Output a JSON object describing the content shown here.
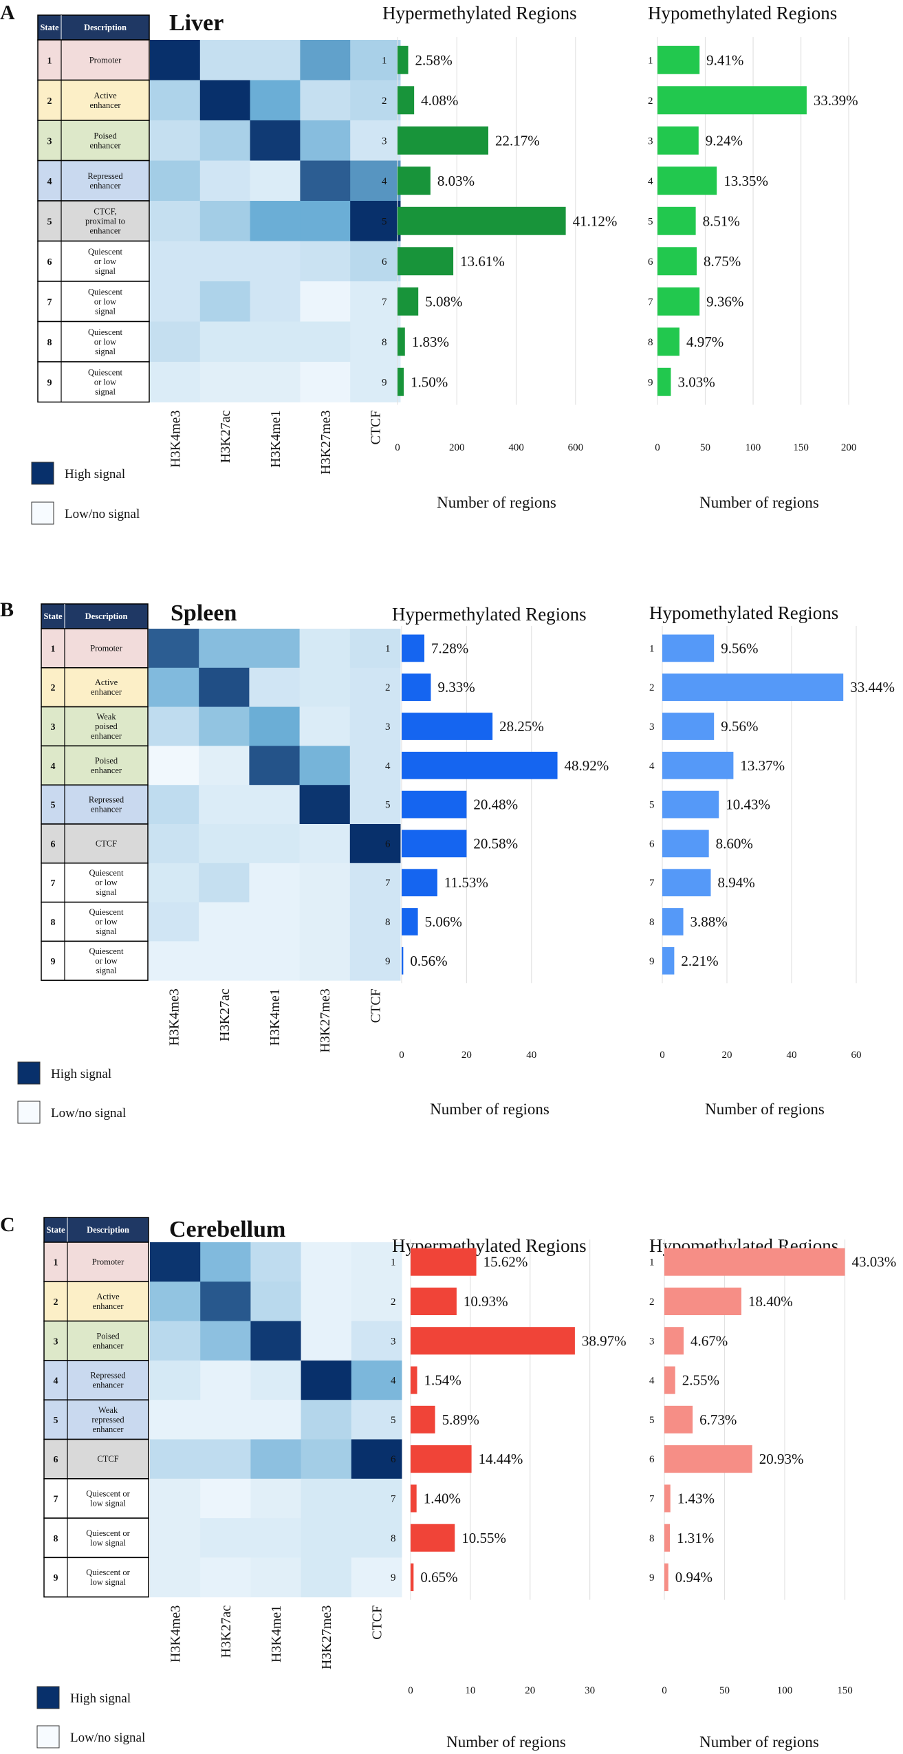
{
  "domain": "Chart",
  "legend": {
    "high": "High signal",
    "low": "Low/no signal"
  },
  "table_headers": {
    "state": "State",
    "description": "Description"
  },
  "marks": [
    "H3K4me3",
    "H3K27ac",
    "H3K4me1",
    "H3K27me3",
    "CTCF"
  ],
  "colors": {
    "header_bg": "#1f3864",
    "heat_high": "#08306b",
    "heat_low": "#f7fbff",
    "state_fill": {
      "promoter": "#f2dcdb",
      "active": "#fcefc7",
      "poised": "#dde8c9",
      "repressed": "#c9d9ef",
      "ctcf": "#d9d9d9",
      "quiescent": "#ffffff"
    }
  },
  "chart_data": [
    {
      "panel": "A",
      "tissue": "Liver",
      "states": [
        {
          "num": "1",
          "lines": [
            "Promoter"
          ],
          "fill": "promoter"
        },
        {
          "num": "2",
          "lines": [
            "Active",
            "enhancer"
          ],
          "fill": "active"
        },
        {
          "num": "3",
          "lines": [
            "Poised",
            "enhancer"
          ],
          "fill": "poised"
        },
        {
          "num": "4",
          "lines": [
            "Repressed",
            "enhancer"
          ],
          "fill": "repressed"
        },
        {
          "num": "5",
          "lines": [
            "CTCF,",
            "proximal to",
            "enhancer"
          ],
          "fill": "ctcf"
        },
        {
          "num": "6",
          "lines": [
            "Quiescent",
            "or low",
            "signal"
          ],
          "fill": "quiescent"
        },
        {
          "num": "7",
          "lines": [
            "Quiescent",
            "or low",
            "signal"
          ],
          "fill": "quiescent"
        },
        {
          "num": "8",
          "lines": [
            "Quiescent",
            "or low",
            "signal"
          ],
          "fill": "quiescent"
        },
        {
          "num": "9",
          "lines": [
            "Quiescent",
            "or low",
            "signal"
          ],
          "fill": "quiescent"
        }
      ],
      "heatmap": [
        [
          1.0,
          0.18,
          0.18,
          0.55,
          0.28
        ],
        [
          0.26,
          1.0,
          0.5,
          0.18,
          0.22
        ],
        [
          0.18,
          0.28,
          0.96,
          0.4,
          0.14
        ],
        [
          0.3,
          0.14,
          0.1,
          0.82,
          0.6
        ],
        [
          0.18,
          0.3,
          0.5,
          0.5,
          1.0
        ],
        [
          0.14,
          0.14,
          0.14,
          0.16,
          0.22
        ],
        [
          0.14,
          0.26,
          0.14,
          0.04,
          0.1
        ],
        [
          0.18,
          0.12,
          0.12,
          0.12,
          0.1
        ],
        [
          0.1,
          0.08,
          0.08,
          0.04,
          0.1
        ]
      ],
      "hyper": {
        "title": "Hypermethylated Regions",
        "xlabel": "Number of regions",
        "xlim": [
          0,
          700
        ],
        "xticks": [
          0,
          200,
          400,
          600
        ],
        "color": "#18943a",
        "categories": [
          "1",
          "2",
          "3",
          "4",
          "5",
          "6",
          "7",
          "8",
          "9"
        ],
        "values": [
          36,
          56,
          306,
          111,
          567,
          188,
          70,
          25,
          21
        ],
        "labels": [
          "2.58%",
          "4.08%",
          "22.17%",
          "8.03%",
          "41.12%",
          "13.61%",
          "5.08%",
          "1.83%",
          "1.50%"
        ]
      },
      "hypo": {
        "title": "Hypomethylated Regions",
        "xlabel": "Number of regions",
        "xlim": [
          0,
          210
        ],
        "xticks": [
          0,
          50,
          100,
          150,
          200
        ],
        "color": "#22c84e",
        "categories": [
          "1",
          "2",
          "3",
          "4",
          "5",
          "6",
          "7",
          "8",
          "9"
        ],
        "values": [
          44,
          156,
          43,
          62,
          40,
          41,
          44,
          23,
          14
        ],
        "labels": [
          "9.41%",
          "33.39%",
          "9.24%",
          "13.35%",
          "8.51%",
          "8.75%",
          "9.36%",
          "4.97%",
          "3.03%"
        ]
      }
    },
    {
      "panel": "B",
      "tissue": "Spleen",
      "states": [
        {
          "num": "1",
          "lines": [
            "Promoter"
          ],
          "fill": "promoter"
        },
        {
          "num": "2",
          "lines": [
            "Active",
            "enhancer"
          ],
          "fill": "active"
        },
        {
          "num": "3",
          "lines": [
            "Weak",
            "poised",
            "enhancer"
          ],
          "fill": "poised"
        },
        {
          "num": "4",
          "lines": [
            "Poised",
            "enhancer"
          ],
          "fill": "poised"
        },
        {
          "num": "5",
          "lines": [
            "Repressed",
            "enhancer"
          ],
          "fill": "repressed"
        },
        {
          "num": "6",
          "lines": [
            "CTCF"
          ],
          "fill": "ctcf"
        },
        {
          "num": "7",
          "lines": [
            "Quiescent",
            "or low",
            "signal"
          ],
          "fill": "quiescent"
        },
        {
          "num": "8",
          "lines": [
            "Quiescent",
            "or low",
            "signal"
          ],
          "fill": "quiescent"
        },
        {
          "num": "9",
          "lines": [
            "Quiescent",
            "or low",
            "signal"
          ],
          "fill": "quiescent"
        }
      ],
      "heatmap": [
        [
          0.82,
          0.4,
          0.4,
          0.12,
          0.16
        ],
        [
          0.42,
          0.88,
          0.14,
          0.12,
          0.14
        ],
        [
          0.2,
          0.36,
          0.5,
          0.1,
          0.14
        ],
        [
          0.02,
          0.08,
          0.86,
          0.46,
          0.14
        ],
        [
          0.2,
          0.1,
          0.1,
          0.98,
          0.14
        ],
        [
          0.16,
          0.12,
          0.12,
          0.1,
          1.0
        ],
        [
          0.12,
          0.18,
          0.06,
          0.08,
          0.14
        ],
        [
          0.14,
          0.06,
          0.06,
          0.08,
          0.14
        ],
        [
          0.06,
          0.06,
          0.06,
          0.08,
          0.14
        ]
      ],
      "hyper": {
        "title": "Hypermethylated Regions",
        "xlabel": "Number of regions",
        "xlim": [
          0,
          50
        ],
        "xticks": [
          0,
          20,
          40
        ],
        "color": "#1565f0",
        "categories": [
          "1",
          "2",
          "3",
          "4",
          "5",
          "6",
          "7",
          "8",
          "9"
        ],
        "values": [
          7,
          9,
          28,
          48,
          20,
          20,
          11,
          5,
          0.5
        ],
        "labels": [
          "7.28%",
          "9.33%",
          "28.25%",
          "48.92%",
          "20.48%",
          "20.58%",
          "11.53%",
          "5.06%",
          "0.56%"
        ]
      },
      "hypo": {
        "title": "Hypomethylated Regions",
        "xlabel": "Number of regions",
        "xlim": [
          0,
          60
        ],
        "xticks": [
          0,
          20,
          40,
          60
        ],
        "color": "#5599f8",
        "categories": [
          "1",
          "2",
          "3",
          "4",
          "5",
          "6",
          "7",
          "8",
          "9"
        ],
        "values": [
          16,
          56,
          16,
          22,
          17.5,
          14.4,
          15,
          6.5,
          3.7
        ],
        "labels": [
          "9.56%",
          "33.44%",
          "9.56%",
          "13.37%",
          "10.43%",
          "8.60%",
          "8.94%",
          "3.88%",
          "2.21%"
        ]
      }
    },
    {
      "panel": "C",
      "tissue": "Cerebellum",
      "states": [
        {
          "num": "1",
          "lines": [
            "Promoter"
          ],
          "fill": "promoter"
        },
        {
          "num": "2",
          "lines": [
            "Active",
            "enhancer"
          ],
          "fill": "active"
        },
        {
          "num": "3",
          "lines": [
            "Poised",
            "enhancer"
          ],
          "fill": "poised"
        },
        {
          "num": "4",
          "lines": [
            "Repressed",
            "enhancer"
          ],
          "fill": "repressed"
        },
        {
          "num": "5",
          "lines": [
            "Weak",
            "repressed",
            "enhancer"
          ],
          "fill": "repressed"
        },
        {
          "num": "6",
          "lines": [
            "CTCF"
          ],
          "fill": "ctcf"
        },
        {
          "num": "7",
          "lines": [
            "Quiescent or",
            "low signal"
          ],
          "fill": "quiescent"
        },
        {
          "num": "8",
          "lines": [
            "Quiescent or",
            "low signal"
          ],
          "fill": "quiescent"
        },
        {
          "num": "9",
          "lines": [
            "Quiescent or",
            "low signal"
          ],
          "fill": "quiescent"
        }
      ],
      "heatmap": [
        [
          0.98,
          0.42,
          0.2,
          0.06,
          0.08
        ],
        [
          0.36,
          0.84,
          0.22,
          0.06,
          0.08
        ],
        [
          0.22,
          0.38,
          0.96,
          0.06,
          0.14
        ],
        [
          0.12,
          0.06,
          0.1,
          1.0,
          0.44
        ],
        [
          0.06,
          0.06,
          0.06,
          0.24,
          0.14
        ],
        [
          0.2,
          0.2,
          0.38,
          0.3,
          1.0
        ],
        [
          0.08,
          0.04,
          0.08,
          0.12,
          0.12
        ],
        [
          0.08,
          0.1,
          0.1,
          0.12,
          0.12
        ],
        [
          0.08,
          0.06,
          0.08,
          0.12,
          0.06
        ]
      ],
      "hyper": {
        "title": "Hypermethylated Regions",
        "xlabel": "Number of regions",
        "xlim": [
          0,
          32
        ],
        "xticks": [
          0,
          10,
          20,
          30
        ],
        "color": "#f04438",
        "categories": [
          "1",
          "2",
          "3",
          "4",
          "5",
          "6",
          "7",
          "8",
          "9"
        ],
        "values": [
          11,
          7.7,
          27.5,
          1.1,
          4.1,
          10.2,
          1,
          7.4,
          0.5
        ],
        "labels": [
          "15.62%",
          "10.93%",
          "38.97%",
          "1.54%",
          "5.89%",
          "14.44%",
          "1.40%",
          "10.55%",
          "0.65%"
        ]
      },
      "hypo": {
        "title": "Hypomethylated Regions",
        "xlabel": "Number of regions",
        "xlim": [
          0,
          160
        ],
        "xticks": [
          0,
          50,
          100,
          150
        ],
        "color": "#f68e86",
        "categories": [
          "1",
          "2",
          "3",
          "4",
          "5",
          "6",
          "7",
          "8",
          "9"
        ],
        "values": [
          150,
          64,
          16,
          9,
          23.5,
          73,
          5,
          4.6,
          3.3
        ],
        "labels": [
          "43.03%",
          "18.40%",
          "4.67%",
          "2.55%",
          "6.73%",
          "20.93%",
          "1.43%",
          "1.31%",
          "0.94%"
        ]
      }
    }
  ]
}
